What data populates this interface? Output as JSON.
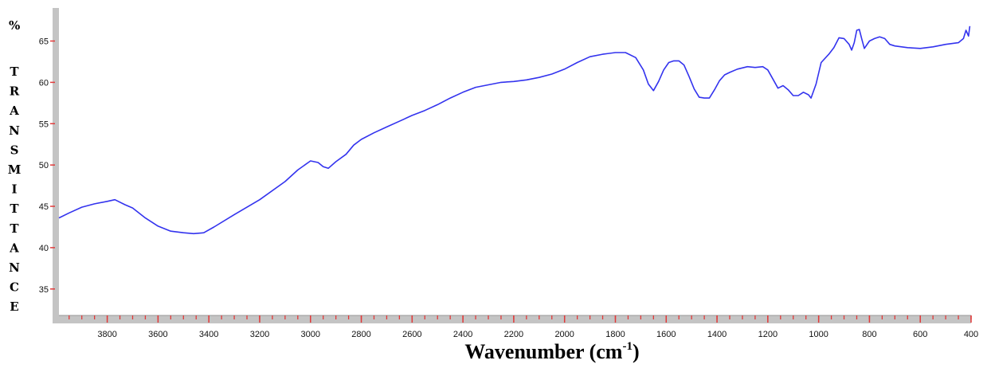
{
  "chart_data": {
    "type": "line",
    "percent_symbol": "%",
    "ylabel": "TRANSMITTANCE",
    "xlabel_main": "Wavenumber (cm",
    "xlabel_sup": "-1",
    "xlabel_close": ")",
    "x_reversed": true,
    "xlim": [
      3990,
      400
    ],
    "ylim": [
      31.8,
      69.0
    ],
    "x_ticks": [
      "3800",
      "3600",
      "3400",
      "3200",
      "3000",
      "2800",
      "2600",
      "2400",
      "2200",
      "2000",
      "1800",
      "1600",
      "1400",
      "1200",
      "1000",
      "800",
      "600",
      "400"
    ],
    "y_ticks": [
      "65",
      "60",
      "55",
      "50",
      "45",
      "40",
      "35"
    ],
    "grid": false,
    "series": [
      {
        "color": "#3333ee",
        "x": [
          3990,
          3950,
          3900,
          3850,
          3800,
          3770,
          3730,
          3700,
          3650,
          3600,
          3550,
          3500,
          3460,
          3420,
          3380,
          3300,
          3200,
          3100,
          3050,
          3000,
          2970,
          2950,
          2930,
          2900,
          2860,
          2830,
          2800,
          2750,
          2700,
          2650,
          2600,
          2550,
          2500,
          2450,
          2400,
          2350,
          2300,
          2250,
          2200,
          2150,
          2100,
          2050,
          2000,
          1950,
          1900,
          1850,
          1800,
          1760,
          1720,
          1690,
          1670,
          1650,
          1630,
          1610,
          1590,
          1570,
          1550,
          1530,
          1510,
          1490,
          1470,
          1450,
          1430,
          1410,
          1390,
          1370,
          1350,
          1320,
          1280,
          1250,
          1220,
          1200,
          1180,
          1160,
          1140,
          1120,
          1100,
          1080,
          1060,
          1040,
          1030,
          1010,
          990,
          960,
          940,
          920,
          900,
          880,
          870,
          860,
          850,
          840,
          830,
          820,
          800,
          780,
          760,
          740,
          720,
          700,
          650,
          600,
          550,
          500,
          450,
          430,
          420,
          410,
          405
        ],
        "values": [
          43.6,
          44.2,
          44.9,
          45.3,
          45.6,
          45.8,
          45.2,
          44.8,
          43.6,
          42.6,
          42.0,
          41.8,
          41.7,
          41.8,
          42.5,
          44.0,
          45.8,
          48.0,
          49.4,
          50.5,
          50.3,
          49.8,
          49.6,
          50.4,
          51.3,
          52.4,
          53.1,
          53.9,
          54.6,
          55.3,
          56.0,
          56.6,
          57.3,
          58.1,
          58.8,
          59.4,
          59.7,
          60.0,
          60.1,
          60.3,
          60.6,
          61.0,
          61.6,
          62.4,
          63.1,
          63.4,
          63.6,
          63.6,
          63.0,
          61.5,
          59.8,
          59.0,
          60.1,
          61.5,
          62.4,
          62.6,
          62.6,
          62.1,
          60.7,
          59.2,
          58.2,
          58.1,
          58.1,
          59.1,
          60.2,
          60.9,
          61.2,
          61.6,
          61.9,
          61.8,
          61.9,
          61.5,
          60.4,
          59.3,
          59.6,
          59.1,
          58.4,
          58.4,
          58.8,
          58.5,
          58.1,
          59.8,
          62.4,
          63.4,
          64.2,
          65.4,
          65.3,
          64.6,
          63.9,
          64.8,
          66.3,
          66.4,
          65.2,
          64.1,
          65.0,
          65.3,
          65.5,
          65.3,
          64.6,
          64.4,
          64.2,
          64.1,
          64.3,
          64.6,
          64.8,
          65.3,
          66.3,
          65.6,
          66.8
        ]
      }
    ]
  }
}
